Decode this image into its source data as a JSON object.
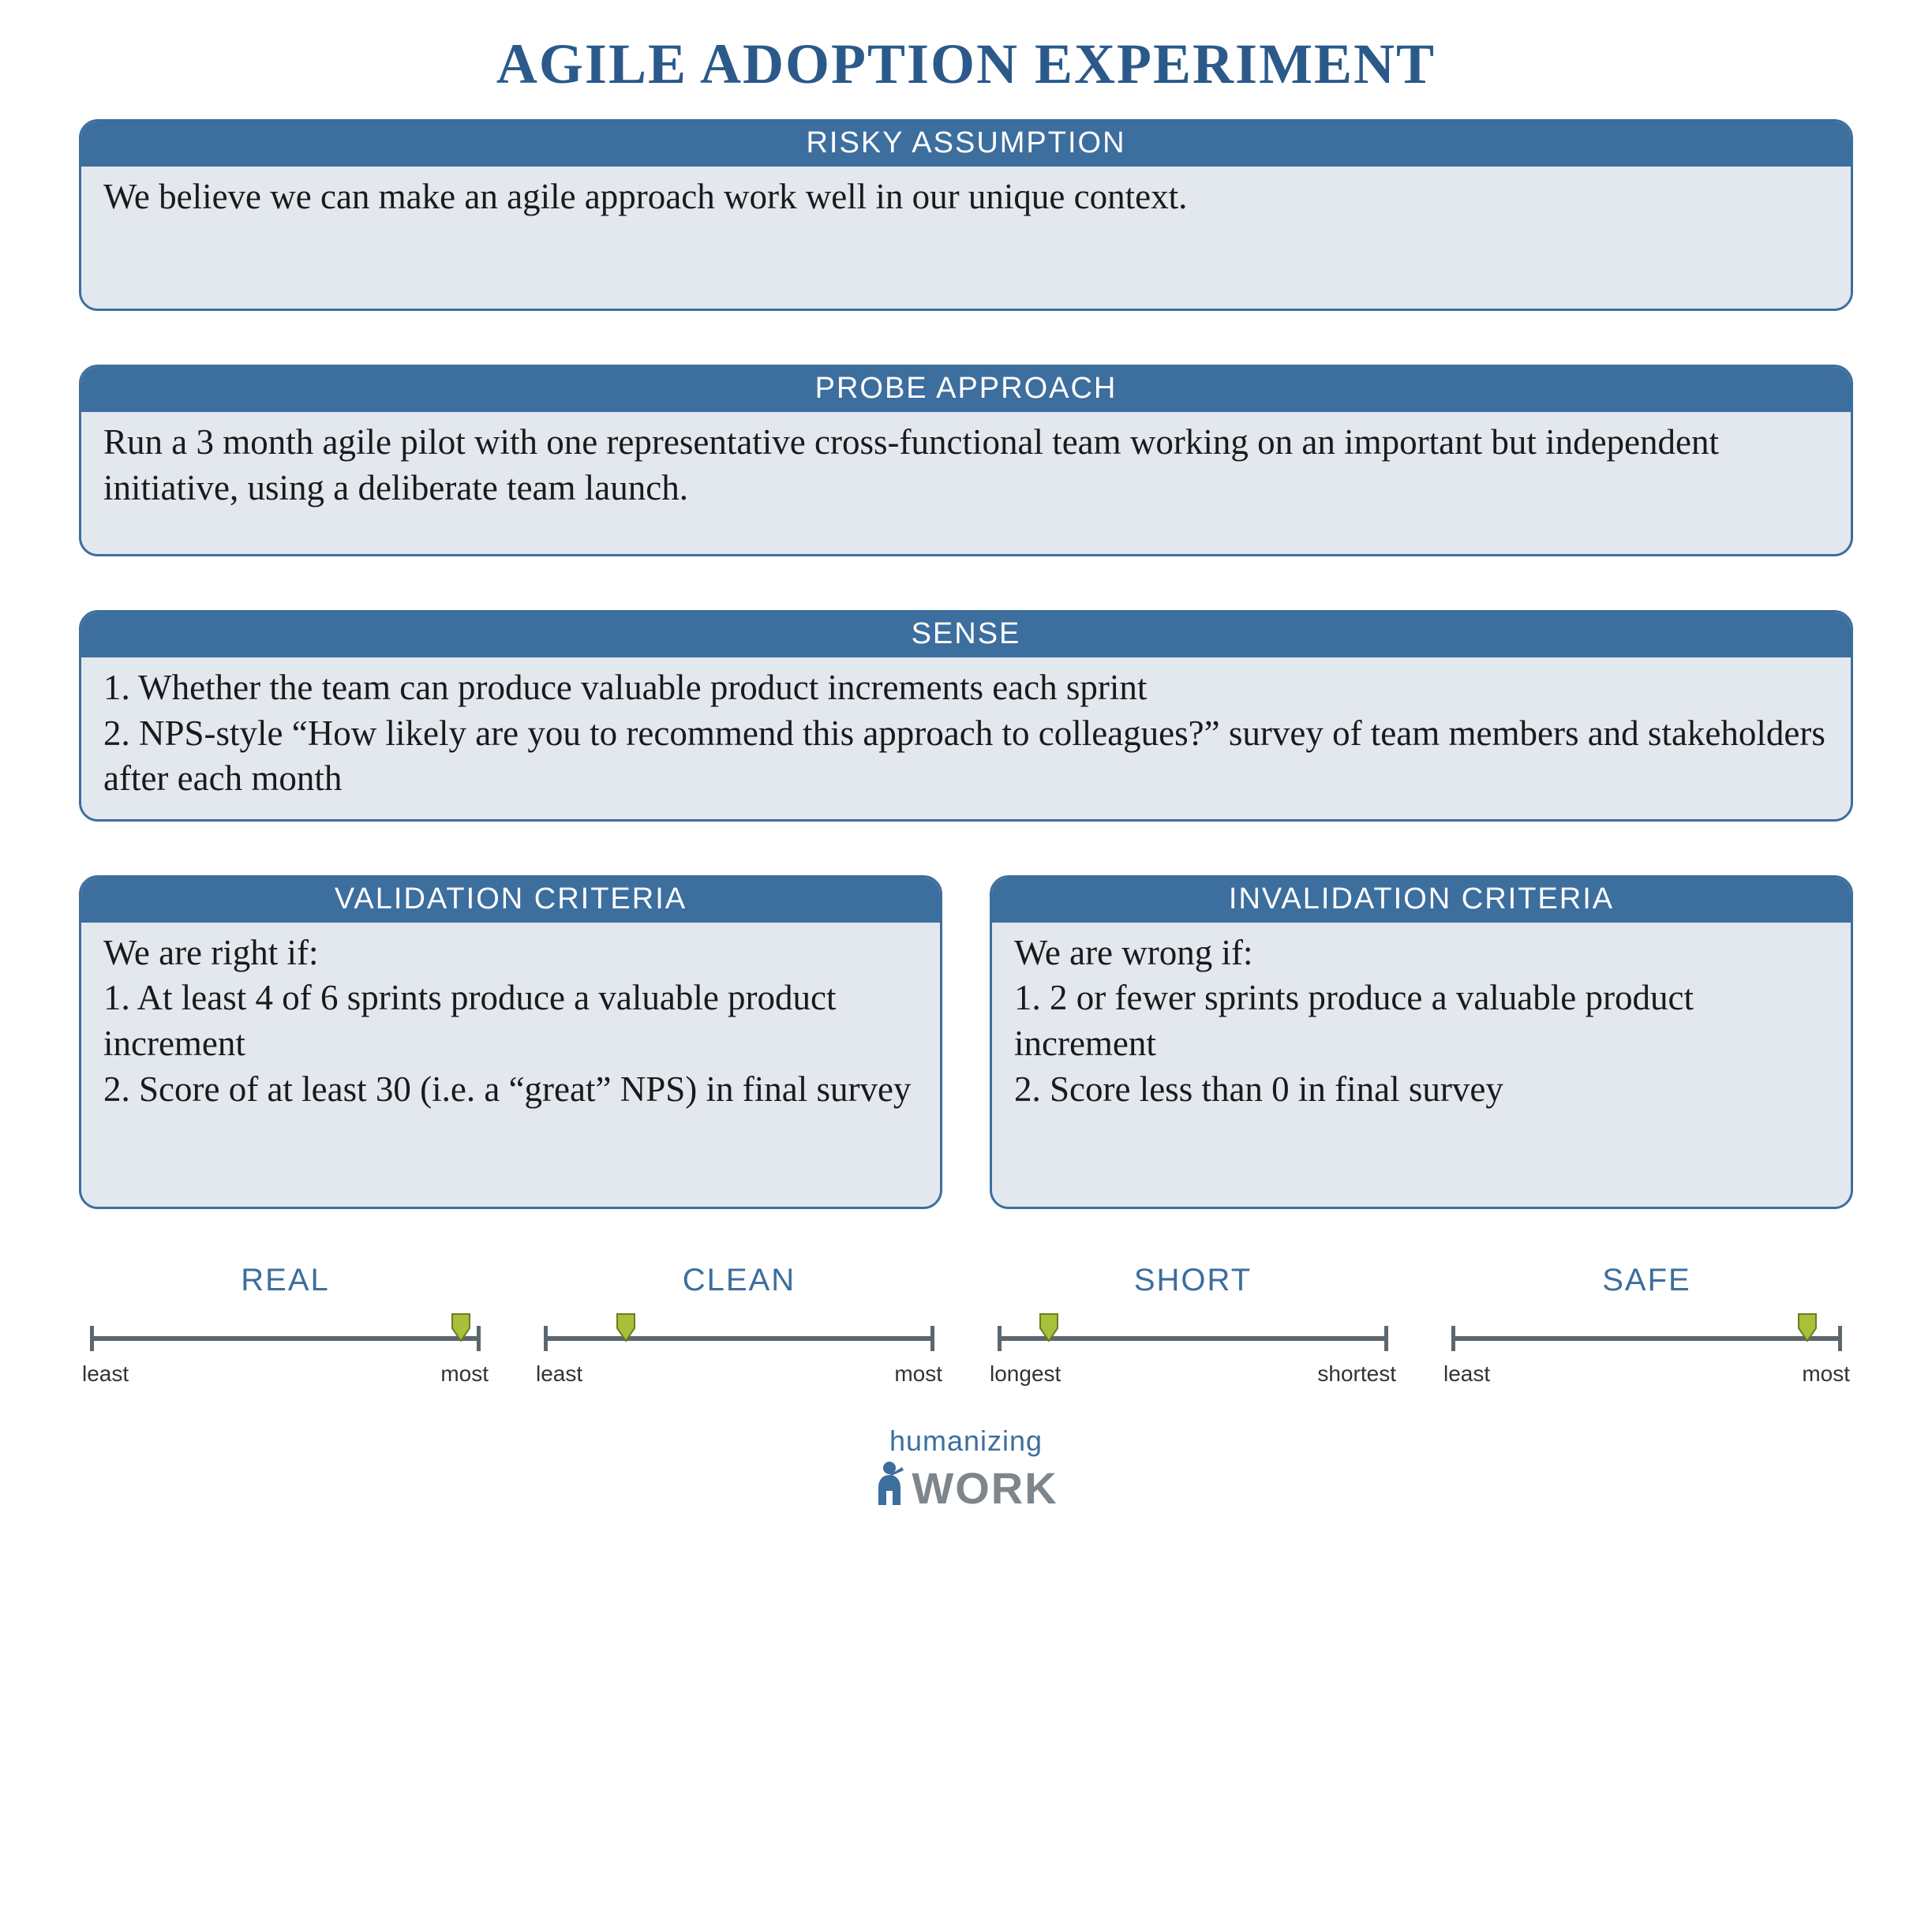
{
  "colors": {
    "brand_blue": "#3c6e9e",
    "title_blue": "#2b5a8a",
    "card_body_bg": "#e3e7ee",
    "card_border": "#3c6e9e",
    "scale_line": "#5b6770",
    "marker_fill": "#a7c13a",
    "marker_stroke": "#6e7a23",
    "logo_gray": "#7d868c"
  },
  "title": "AGILE ADOPTION EXPERIMENT",
  "sections": {
    "risky_assumption": {
      "header": "RISKY ASSUMPTION",
      "body": "We believe we can make an agile approach work well in our unique context."
    },
    "probe_approach": {
      "header": "PROBE APPROACH",
      "body": "Run a 3 month agile pilot with one representative cross-functional team working on an important but independent initiative, using a deliberate team launch."
    },
    "sense": {
      "header": "SENSE",
      "body": "1. Whether the team can produce valuable product increments each sprint\n2. NPS-style “How likely are you to recommend this approach to colleagues?” survey of team members and stakeholders after each month"
    },
    "validation": {
      "header": "VALIDATION CRITERIA",
      "body": "We are right if:\n1. At least 4 of 6 sprints produce a valuable product increment\n2. Score of at least 30 (i.e. a “great” NPS) in final survey"
    },
    "invalidation": {
      "header": "INVALIDATION CRITERIA",
      "body": "We are wrong if:\n1. 2 or fewer sprints produce a valuable product increment\n2. Score less than 0 in final survey"
    }
  },
  "scales": [
    {
      "title": "REAL",
      "left": "least",
      "right": "most",
      "value": 0.92
    },
    {
      "title": "CLEAN",
      "left": "least",
      "right": "most",
      "value": 0.18
    },
    {
      "title": "SHORT",
      "left": "longest",
      "right": "shortest",
      "value": 0.1
    },
    {
      "title": "SAFE",
      "left": "least",
      "right": "most",
      "value": 0.88
    }
  ],
  "footer": {
    "top": "humanizing",
    "bottom": "WORK"
  }
}
